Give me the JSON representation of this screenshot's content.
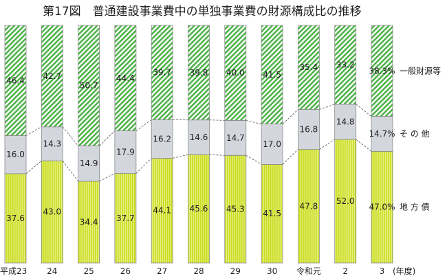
{
  "chart_data": {
    "type": "bar",
    "stacked": true,
    "percent": true,
    "title": "第17図　普通建設事業費中の単独事業費の財源構成比の推移",
    "categories": [
      "平成23",
      "24",
      "25",
      "26",
      "27",
      "28",
      "29",
      "30",
      "令和元",
      "2",
      "3"
    ],
    "x_unit": "(年度)",
    "series": [
      {
        "name": "地 方 債",
        "color": "#d6e634",
        "pattern": "vertical-hatch",
        "values": [
          37.6,
          43.0,
          34.4,
          37.7,
          44.1,
          45.6,
          45.3,
          41.5,
          47.8,
          52.0,
          47.0
        ],
        "labels": [
          "37.6",
          "43.0",
          "34.4",
          "37.7",
          "44.1",
          "45.6",
          "45.3",
          "41.5",
          "47.8",
          "52.0",
          "47.0%"
        ]
      },
      {
        "name": "そ の 他",
        "color": "#d3d6dc",
        "pattern": "solid",
        "values": [
          16.0,
          14.3,
          14.9,
          17.9,
          16.2,
          14.6,
          14.7,
          17.0,
          16.8,
          14.8,
          14.7
        ],
        "labels": [
          "16.0",
          "14.3",
          "14.9",
          "17.9",
          "16.2",
          "14.6",
          "14.7",
          "17.0",
          "16.8",
          "14.8",
          "14.7%"
        ]
      },
      {
        "name": "一般財源等",
        "color": "#4fb24a",
        "pattern": "diagonal-hatch",
        "values": [
          46.4,
          42.7,
          50.7,
          44.4,
          39.7,
          39.8,
          40.0,
          41.5,
          35.4,
          33.2,
          38.3
        ],
        "labels": [
          "46.4",
          "42.7",
          "50.7",
          "44.4",
          "39.7",
          "39.8",
          "40.0",
          "41.5",
          "35.4",
          "33.2",
          "38.3%"
        ]
      }
    ],
    "ylim": [
      0,
      100
    ],
    "connector_lines": "dashed",
    "legend": "right"
  }
}
